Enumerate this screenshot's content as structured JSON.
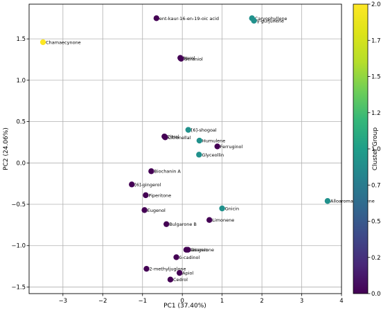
{
  "chart_data": {
    "type": "scatter",
    "xlabel": "PC1 (37.40%)",
    "ylabel": "PC2 (24.06%)",
    "xlim": [
      -3.85,
      4.0
    ],
    "ylim": [
      -1.58,
      1.92
    ],
    "xticks": [
      -3,
      -2,
      -1,
      0,
      1,
      2,
      3,
      4
    ],
    "yticks": [
      -1.5,
      -1.0,
      -0.5,
      0.0,
      0.5,
      1.0,
      1.5
    ],
    "xtick_labels": [
      "−3",
      "−2",
      "−1",
      "0",
      "1",
      "2",
      "3",
      "4"
    ],
    "ytick_labels": [
      "−1.5",
      "−1.0",
      "−0.5",
      "0.0",
      "0.5",
      "1.0",
      "1.5"
    ],
    "grid": true,
    "colorbar": {
      "label": "Cluster Group",
      "min": 0.0,
      "max": 2.0,
      "ticks": [
        0.0,
        0.25,
        0.5,
        0.75,
        1.0,
        1.25,
        1.5,
        1.75,
        2.0
      ],
      "tick_labels": [
        "0.00",
        "0.25",
        "0.50",
        "0.75",
        "1.00",
        "1.25",
        "1.50",
        "1.75",
        "2.00"
      ],
      "colormap": "viridis"
    },
    "points": [
      {
        "label": "ent-kaur-16-en-19-oic acid",
        "x": -0.65,
        "y": 1.75,
        "cluster": 0
      },
      {
        "label": "Caryophyllene",
        "x": 1.75,
        "y": 1.75,
        "cluster": 1
      },
      {
        "label": "γ-gurjunene",
        "x": 1.8,
        "y": 1.72,
        "cluster": 1
      },
      {
        "label": "Chamaecynone",
        "x": -3.5,
        "y": 1.46,
        "cluster": 2
      },
      {
        "label": "Nerol",
        "x": -0.05,
        "y": 1.27,
        "cluster": 0
      },
      {
        "label": "Geraniol",
        "x": -0.03,
        "y": 1.26,
        "cluster": 0
      },
      {
        "label": "[6]-shogoal",
        "x": 0.15,
        "y": 0.4,
        "cluster": 1
      },
      {
        "label": "Citral",
        "x": -0.45,
        "y": 0.32,
        "cluster": 0
      },
      {
        "label": "Citronellal",
        "x": -0.43,
        "y": 0.31,
        "cluster": 0
      },
      {
        "label": "Humulene",
        "x": 0.43,
        "y": 0.27,
        "cluster": 1
      },
      {
        "label": "Ferruginol",
        "x": 0.88,
        "y": 0.2,
        "cluster": 0
      },
      {
        "label": "Glyceollin",
        "x": 0.42,
        "y": 0.1,
        "cluster": 1
      },
      {
        "label": "Biochanin A",
        "x": -0.78,
        "y": -0.1,
        "cluster": 0
      },
      {
        "label": "[6]-gingerol",
        "x": -1.27,
        "y": -0.26,
        "cluster": 0
      },
      {
        "label": "Piperitone",
        "x": -0.92,
        "y": -0.39,
        "cluster": 0
      },
      {
        "label": "Alloaromadendrene",
        "x": 3.65,
        "y": -0.46,
        "cluster": 1
      },
      {
        "label": "Eugenol",
        "x": -0.95,
        "y": -0.57,
        "cluster": 0
      },
      {
        "label": "Gnicin",
        "x": 1.0,
        "y": -0.55,
        "cluster": 1
      },
      {
        "label": "Limonene",
        "x": 0.68,
        "y": -0.69,
        "cluster": 0
      },
      {
        "label": "Bulgarone B",
        "x": -0.4,
        "y": -0.74,
        "cluster": 0
      },
      {
        "label": "Sesamin",
        "x": 0.1,
        "y": -1.05,
        "cluster": 0
      },
      {
        "label": "Gingerone",
        "x": 0.14,
        "y": -1.05,
        "cluster": 0
      },
      {
        "label": "δ-cadinol",
        "x": -0.15,
        "y": -1.14,
        "cluster": 0
      },
      {
        "label": "2-methyljuglone",
        "x": -0.9,
        "y": -1.28,
        "cluster": 0
      },
      {
        "label": "Apiol",
        "x": -0.07,
        "y": -1.33,
        "cluster": 0
      },
      {
        "label": "Cedrol",
        "x": -0.3,
        "y": -1.41,
        "cluster": 0
      }
    ]
  }
}
